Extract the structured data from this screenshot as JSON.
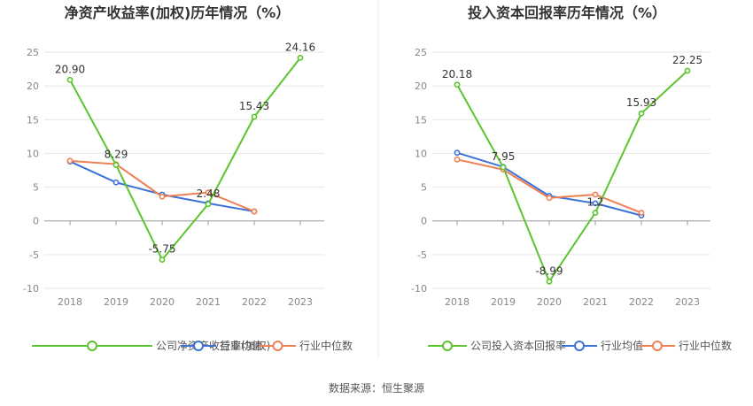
{
  "chart_data": [
    {
      "type": "line",
      "title": "净资产收益率(加权)历年情况（%）",
      "categories": [
        "2018",
        "2019",
        "2020",
        "2021",
        "2022",
        "2023"
      ],
      "ylim": [
        -10,
        25
      ],
      "yticks": [
        "25",
        "20",
        "15",
        "10",
        "5",
        "0",
        "-5",
        "-10"
      ],
      "grid": true,
      "legend_position": "bottom-left",
      "series": [
        {
          "name": "公司净资产收益率(加权)",
          "color": "#5cc42d",
          "values": [
            20.9,
            8.29,
            -5.75,
            2.48,
            15.43,
            24.16
          ],
          "labels": [
            "20.90",
            "8.29",
            "-5.75",
            "2.48",
            "15.43",
            "24.16"
          ]
        },
        {
          "name": "行业均值",
          "color": "#3d72d9",
          "values": [
            8.8,
            5.7,
            3.9,
            2.6,
            1.4,
            null
          ]
        },
        {
          "name": "行业中位数",
          "color": "#ef8055",
          "values": [
            8.9,
            8.4,
            3.6,
            4.2,
            1.4,
            null
          ]
        }
      ]
    },
    {
      "type": "line",
      "title": "投入资本回报率历年情况（%）",
      "categories": [
        "2018",
        "2019",
        "2020",
        "2021",
        "2022",
        "2023"
      ],
      "ylim": [
        -10,
        25
      ],
      "yticks": [
        "25",
        "20",
        "15",
        "10",
        "5",
        "0",
        "-5",
        "-10"
      ],
      "grid": true,
      "legend_position": "bottom-left",
      "series": [
        {
          "name": "公司投入资本回报率",
          "color": "#5cc42d",
          "values": [
            20.18,
            7.95,
            -8.99,
            1.2,
            15.93,
            22.25
          ],
          "labels": [
            "20.18",
            "7.95",
            "-8.99",
            "1.2",
            "15.93",
            "22.25"
          ]
        },
        {
          "name": "行业均值",
          "color": "#3d72d9",
          "values": [
            10.1,
            8.0,
            3.7,
            2.6,
            0.8,
            null
          ]
        },
        {
          "name": "行业中位数",
          "color": "#ef8055",
          "values": [
            9.1,
            7.6,
            3.4,
            3.9,
            1.2,
            null
          ]
        }
      ]
    }
  ],
  "footer": {
    "source": "数据来源：恒生聚源"
  }
}
